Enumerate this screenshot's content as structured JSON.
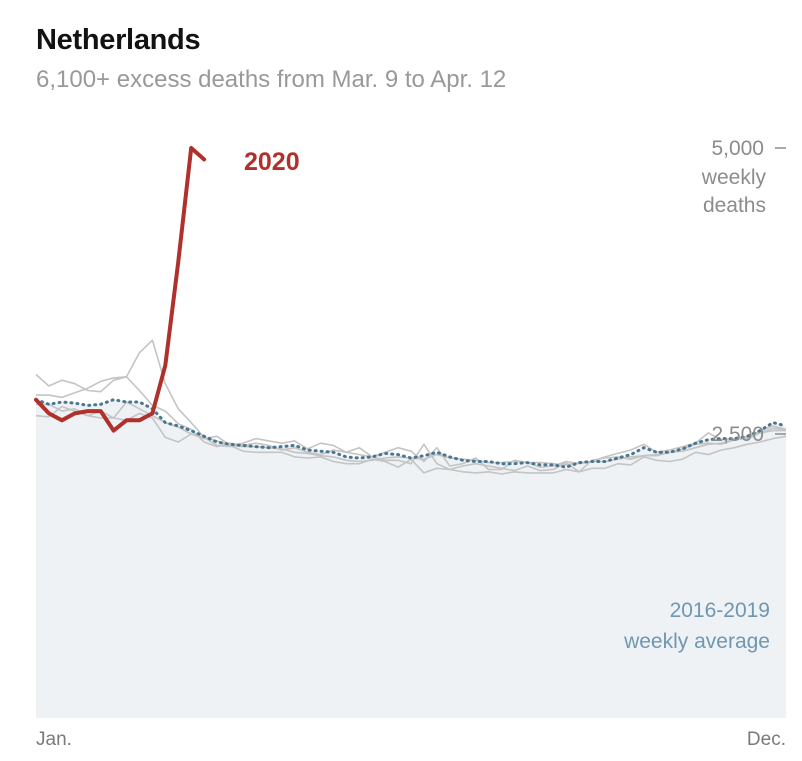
{
  "chart_data": {
    "type": "line",
    "title": "Netherlands",
    "subtitle": "6,100+ excess deaths from Mar. 9 to Apr. 12",
    "x_labels": [
      "Jan.",
      "Dec."
    ],
    "y_ticks": [
      {
        "value": 5000,
        "label": "5,000"
      },
      {
        "value": 2500,
        "label": "2,500"
      }
    ],
    "y_unit_label": [
      "weekly",
      "deaths"
    ],
    "ylim": [
      0,
      5100
    ],
    "series": [
      {
        "name": "2020",
        "values": [
          2800,
          2680,
          2620,
          2680,
          2700,
          2700,
          2530,
          2620,
          2620,
          2680,
          3100,
          4000,
          5000,
          4900
        ]
      },
      {
        "name": "2016-2019 weekly average",
        "values": [
          2800,
          2760,
          2780,
          2770,
          2750,
          2760,
          2800,
          2780,
          2780,
          2720,
          2600,
          2570,
          2530,
          2480,
          2430,
          2410,
          2400,
          2390,
          2380,
          2390,
          2400,
          2360,
          2350,
          2340,
          2300,
          2290,
          2300,
          2330,
          2320,
          2290,
          2310,
          2340,
          2300,
          2270,
          2260,
          2260,
          2240,
          2240,
          2250,
          2230,
          2230,
          2210,
          2250,
          2260,
          2260,
          2290,
          2320,
          2380,
          2340,
          2340,
          2370,
          2420,
          2450,
          2460,
          2460,
          2480,
          2530,
          2600,
          2570
        ]
      },
      {
        "name": "",
        "values": [
          3020,
          2920,
          2970,
          2940,
          2880,
          2870,
          2970,
          3000,
          3210,
          3320,
          2940,
          2720,
          2600,
          2470,
          2400,
          2390,
          2420,
          2460,
          2440,
          2420,
          2440,
          2370,
          2420,
          2400,
          2340,
          2320,
          2300,
          2340,
          2380,
          2350,
          2260,
          2380,
          2220,
          2240,
          2290,
          2190,
          2190,
          2270,
          2250,
          2210,
          2220,
          2260,
          2240,
          2260,
          2300,
          2330,
          2360,
          2410,
          2340,
          2360,
          2390,
          2420,
          2510,
          2450,
          2460,
          2460,
          2510,
          2550,
          2540
        ]
      },
      {
        "name": "",
        "values": [
          2840,
          2840,
          2820,
          2860,
          2900,
          2960,
          2990,
          3000,
          2880,
          2750,
          2700,
          2590,
          2540,
          2430,
          2390,
          2420,
          2400,
          2420,
          2400,
          2360,
          2380,
          2340,
          2320,
          2360,
          2340,
          2380,
          2300,
          2270,
          2270,
          2240,
          2410,
          2240,
          2190,
          2220,
          2240,
          2220,
          2200,
          2180,
          2220,
          2180,
          2190,
          2250,
          2170,
          2270,
          2290,
          2300,
          2280,
          2310,
          2310,
          2340,
          2370,
          2410,
          2420,
          2410,
          2450,
          2460,
          2530,
          2570,
          2540
        ]
      },
      {
        "name": "",
        "values": [
          2660,
          2650,
          2740,
          2700,
          2660,
          2640,
          2640,
          2780,
          2720,
          2660,
          2600,
          2560,
          2500,
          2470,
          2440,
          2400,
          2390,
          2390,
          2380,
          2370,
          2340,
          2330,
          2310,
          2300,
          2270,
          2260,
          2270,
          2290,
          2300,
          2290,
          2280,
          2320,
          2290,
          2280,
          2270,
          2250,
          2250,
          2260,
          2250,
          2250,
          2240,
          2230,
          2250,
          2260,
          2260,
          2280,
          2300,
          2310,
          2320,
          2340,
          2350,
          2380,
          2410,
          2420,
          2450,
          2480,
          2510,
          2530,
          2530
        ]
      },
      {
        "name": "",
        "values": [
          2760,
          2760,
          2700,
          2720,
          2660,
          2700,
          2640,
          2620,
          2680,
          2640,
          2470,
          2430,
          2500,
          2460,
          2480,
          2400,
          2350,
          2340,
          2340,
          2340,
          2300,
          2290,
          2300,
          2260,
          2240,
          2240,
          2280,
          2260,
          2210,
          2280,
          2160,
          2200,
          2190,
          2170,
          2160,
          2170,
          2150,
          2170,
          2160,
          2160,
          2160,
          2190,
          2170,
          2200,
          2200,
          2240,
          2230,
          2300,
          2270,
          2260,
          2280,
          2340,
          2320,
          2360,
          2380,
          2410,
          2430,
          2460,
          2480
        ]
      }
    ],
    "weeks_in_year": 59,
    "labels": {
      "series_2020": "2020",
      "average_line1": "2016-2019",
      "average_line2": "weekly average"
    },
    "colors": {
      "2020": "#b0302b",
      "average": "#4c7690",
      "history": "#c4c4c4",
      "area": "#eef2f5",
      "tick_mark": "#8c8c8c"
    },
    "grid": false,
    "legend": "inline"
  }
}
